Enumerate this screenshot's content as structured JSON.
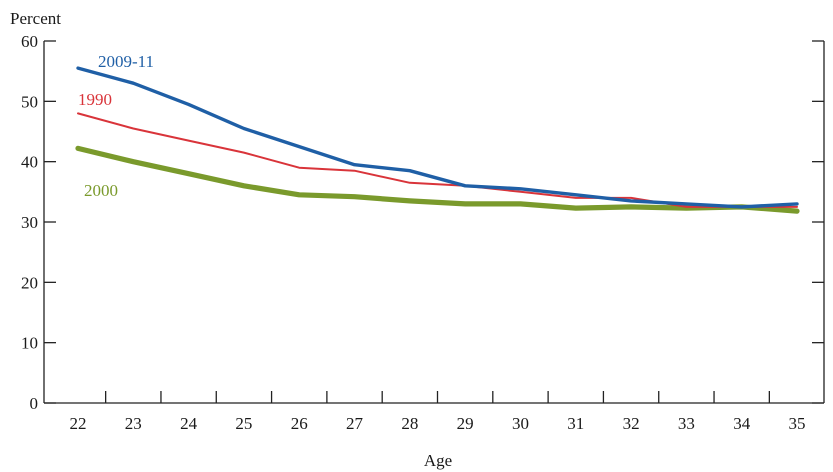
{
  "chart_data": {
    "type": "line",
    "ylabel": "Percent",
    "xlabel": "Age",
    "x": [
      22,
      23,
      24,
      25,
      26,
      27,
      28,
      29,
      30,
      31,
      32,
      33,
      34,
      35
    ],
    "xlim": [
      22,
      35
    ],
    "ylim": [
      0,
      60
    ],
    "yticks": [
      0,
      10,
      20,
      30,
      40,
      50,
      60
    ],
    "grid": false,
    "series": [
      {
        "name": "2009-11",
        "color": "#1f5fa6",
        "values": [
          55.5,
          53.0,
          49.5,
          45.5,
          42.5,
          39.5,
          38.5,
          36.0,
          35.5,
          34.5,
          33.5,
          33.0,
          32.5,
          33.0
        ]
      },
      {
        "name": "1990",
        "color": "#d9343a",
        "values": [
          48.0,
          45.5,
          43.5,
          41.5,
          39.0,
          38.5,
          36.5,
          36.0,
          35.0,
          34.0,
          34.0,
          32.5,
          32.5,
          32.5
        ]
      },
      {
        "name": "2000",
        "color": "#7a9a2c",
        "values": [
          42.2,
          40.0,
          38.0,
          36.0,
          34.5,
          34.2,
          33.5,
          33.0,
          33.0,
          32.3,
          32.5,
          32.3,
          32.5,
          31.8
        ]
      }
    ]
  }
}
